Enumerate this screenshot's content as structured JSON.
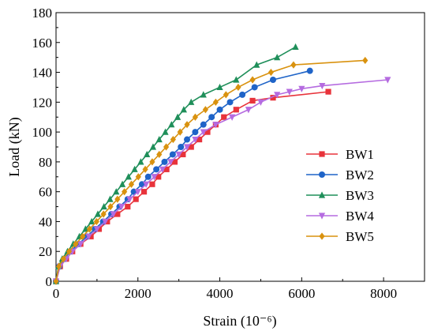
{
  "chart_data": {
    "type": "line",
    "xlabel": "Strain (10⁻⁶)",
    "ylabel": "Load (kN)",
    "xlim": [
      0,
      9000
    ],
    "ylim": [
      0,
      180
    ],
    "xticks": [
      0,
      2000,
      4000,
      6000,
      8000
    ],
    "yticks": [
      0,
      20,
      40,
      60,
      80,
      100,
      120,
      140,
      160,
      180
    ],
    "legend_position": "right",
    "grid": false,
    "series": [
      {
        "name": "BW1",
        "color": "#e8333b",
        "marker": "square",
        "x": [
          0,
          100,
          250,
          400,
          600,
          850,
          1050,
          1250,
          1500,
          1750,
          1950,
          2150,
          2350,
          2500,
          2700,
          2900,
          3100,
          3300,
          3500,
          3700,
          3900,
          4100,
          4400,
          4800,
          5300,
          6650
        ],
        "y": [
          0,
          10,
          15,
          20,
          25,
          30,
          35,
          40,
          45,
          50,
          55,
          60,
          65,
          70,
          75,
          80,
          85,
          90,
          95,
          100,
          105,
          110,
          115,
          121,
          123,
          127
        ]
      },
      {
        "name": "BW2",
        "color": "#1f64c8",
        "marker": "circle",
        "x": [
          0,
          80,
          200,
          350,
          550,
          750,
          950,
          1150,
          1350,
          1550,
          1750,
          1900,
          2100,
          2250,
          2450,
          2650,
          2850,
          3050,
          3200,
          3400,
          3600,
          3800,
          4000,
          4250,
          4550,
          4850,
          5300,
          6200
        ],
        "y": [
          0,
          10,
          15,
          20,
          25,
          30,
          35,
          40,
          45,
          50,
          55,
          60,
          65,
          70,
          75,
          80,
          85,
          90,
          95,
          100,
          105,
          110,
          115,
          120,
          125,
          130,
          135,
          141
        ]
      },
      {
        "name": "BW3",
        "color": "#1f8f5a",
        "marker": "triangle",
        "x": [
          0,
          60,
          150,
          280,
          420,
          570,
          720,
          870,
          1020,
          1170,
          1320,
          1470,
          1620,
          1770,
          1920,
          2070,
          2220,
          2370,
          2520,
          2670,
          2820,
          2970,
          3120,
          3300,
          3600,
          4000,
          4400,
          4900,
          5400,
          5850
        ],
        "y": [
          0,
          10,
          15,
          20,
          25,
          30,
          35,
          40,
          45,
          50,
          55,
          60,
          65,
          70,
          75,
          80,
          85,
          90,
          95,
          100,
          105,
          110,
          115,
          120,
          125,
          130,
          135,
          145,
          150,
          157
        ]
      },
      {
        "name": "BW4",
        "color": "#b56be0",
        "marker": "triangle-down",
        "x": [
          0,
          100,
          250,
          400,
          600,
          800,
          1000,
          1200,
          1400,
          1600,
          1800,
          2000,
          2200,
          2400,
          2600,
          2800,
          3000,
          3200,
          3400,
          3600,
          3900,
          4300,
          4700,
          5000,
          5400,
          5700,
          6000,
          6500,
          8100
        ],
        "y": [
          0,
          10,
          15,
          20,
          25,
          30,
          35,
          40,
          45,
          50,
          55,
          60,
          65,
          70,
          75,
          80,
          85,
          90,
          95,
          100,
          105,
          110,
          115,
          120,
          125,
          127,
          129,
          131,
          135
        ]
      },
      {
        "name": "BW5",
        "color": "#d9920f",
        "marker": "diamond",
        "x": [
          0,
          70,
          180,
          320,
          480,
          650,
          820,
          990,
          1160,
          1330,
          1500,
          1670,
          1840,
          2010,
          2180,
          2350,
          2520,
          2690,
          2860,
          3030,
          3200,
          3400,
          3650,
          3900,
          4150,
          4450,
          4800,
          5250,
          5800,
          7550
        ],
        "y": [
          0,
          10,
          15,
          20,
          25,
          30,
          35,
          40,
          45,
          50,
          55,
          60,
          65,
          70,
          75,
          80,
          85,
          90,
          95,
          100,
          105,
          110,
          115,
          120,
          125,
          130,
          135,
          140,
          145,
          148
        ]
      }
    ]
  }
}
